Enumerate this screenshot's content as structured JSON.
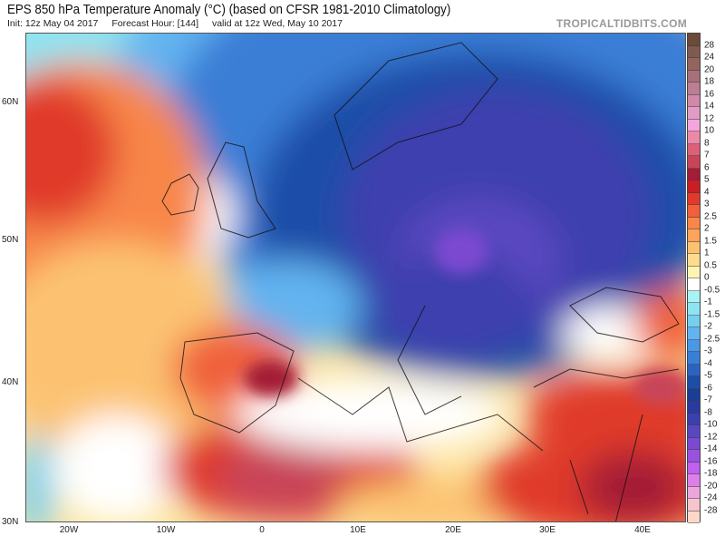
{
  "header": {
    "title": "EPS 850 hPa Temperature Anomaly (°C) (based on CFSR 1981-2010 Climatology)",
    "init": "Init: 12z May 04 2017",
    "forecast_hour": "Forecast Hour: [144]",
    "valid": "valid at 12z Wed, May 10 2017",
    "brand": "TROPICALTIDBITS.COM"
  },
  "map": {
    "lat_labels": [
      "60N",
      "50N",
      "40N",
      "30N"
    ],
    "lon_labels": [
      "20W",
      "10W",
      "0",
      "10E",
      "20E",
      "30E",
      "40E"
    ]
  },
  "colorbar": {
    "labels": [
      "28",
      "24",
      "20",
      "18",
      "16",
      "14",
      "12",
      "10",
      "8",
      "7",
      "6",
      "5",
      "4",
      "3",
      "2.5",
      "2",
      "1.5",
      "1",
      "0.5",
      "0",
      "-0.5",
      "-1",
      "-1.5",
      "-2",
      "-2.5",
      "-3",
      "-4",
      "-5",
      "-6",
      "-7",
      "-8",
      "-10",
      "-12",
      "-14",
      "-16",
      "-18",
      "-20",
      "-24",
      "-28"
    ],
    "colors": [
      "#6b4a38",
      "#7f5a4e",
      "#94645f",
      "#a6707a",
      "#bc7e92",
      "#d08aa8",
      "#e09cc4",
      "#f4a6dc",
      "#ee88a8",
      "#dc6078",
      "#c84458",
      "#a41c36",
      "#c81e26",
      "#e03a2c",
      "#f0603a",
      "#f8864a",
      "#fba45a",
      "#fcc272",
      "#fddc8e",
      "#fef4b4",
      "#ffffff",
      "#a6f4f4",
      "#8ee4f2",
      "#78cef0",
      "#62b4f0",
      "#4a98e6",
      "#3a7ed6",
      "#2a64c0",
      "#1c4ea8",
      "#1a3e96",
      "#2a3aa0",
      "#3c40ae",
      "#5a46c0",
      "#7a4ad0",
      "#9a52de",
      "#c060ec",
      "#dc80e8",
      "#eca6dc",
      "#f6c4cc",
      "#fcd8c8"
    ]
  }
}
